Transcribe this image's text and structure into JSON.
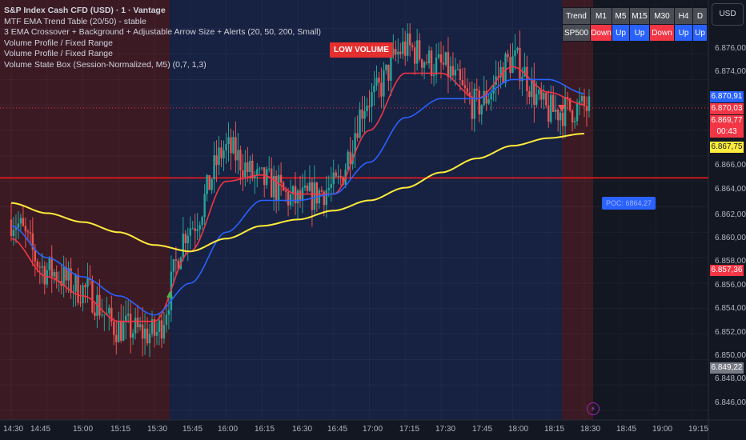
{
  "legend": {
    "title": "S&P Index Cash CFD (USD) · 1 · Vantage",
    "lines": [
      "MTF EMA Trend Table (20/50) - stable",
      "3 EMA Crossover + Background + Adjustable Arrow Size + Alerts (20, 50, 200, Small)",
      "Volume Profile / Fixed Range",
      "Volume Profile / Fixed Range",
      "Volume State Box (Session-Normalized, M5) (0,7, 1,3)"
    ]
  },
  "low_volume_label": "LOW VOLUME",
  "currency_button": "USD",
  "trend_table": {
    "headers": [
      "Trend",
      "M1",
      "M5",
      "M15",
      "M30",
      "H4",
      "D"
    ],
    "row": {
      "symbol": "SP500",
      "values": [
        "Down",
        "Up",
        "Up",
        "Down",
        "Up",
        "Up"
      ]
    }
  },
  "poc_label": "POC: 6864,27",
  "price_axis": {
    "ticks": [
      "6.876,00",
      "6.874,00",
      "6.866,00",
      "6.864,00",
      "6.862,00",
      "6.860,00",
      "6.858,00",
      "6.856,00",
      "6.854,00",
      "6.852,00",
      "6.850,00",
      "6.848,00",
      "6.846,00"
    ],
    "tags": [
      {
        "text": "6.870,91",
        "color": "#2962ff"
      },
      {
        "text": "6.870,03",
        "color": "#f23645"
      },
      {
        "text": "6.869,77",
        "color": "#f23645"
      },
      {
        "text": "00:43",
        "color": "#f23645"
      },
      {
        "text": "6.867,75",
        "color": "#ffeb3b"
      },
      {
        "text": "6.857,36",
        "color": "#f23645"
      },
      {
        "text": "6.849,22",
        "color": "#787b86"
      }
    ]
  },
  "time_axis": [
    "14:30",
    "14:45",
    "15:00",
    "15:15",
    "15:30",
    "15:45",
    "16:00",
    "16:15",
    "16:30",
    "16:45",
    "17:00",
    "17:15",
    "17:30",
    "17:45",
    "18:00",
    "18:15",
    "18:30",
    "18:45",
    "19:00",
    "19:15"
  ],
  "chart_data": {
    "type": "line",
    "x": [
      "14:30",
      "14:45",
      "15:00",
      "15:15",
      "15:30",
      "15:45",
      "16:00",
      "16:15",
      "16:30",
      "16:45",
      "17:00",
      "17:15",
      "17:30",
      "17:45",
      "18:00",
      "18:15",
      "18:30"
    ],
    "ylim": [
      6845.5,
      6878.5
    ],
    "series": [
      {
        "name": "Price",
        "color": "#d1d4dc",
        "values": [
          6861.0,
          6857.0,
          6855.5,
          6852.5,
          6852.0,
          6860.5,
          6866.5,
          6864.0,
          6862.5,
          6863.5,
          6870.5,
          6874.5,
          6873.0,
          6870.0,
          6873.5,
          6869.5,
          6869.77
        ]
      },
      {
        "name": "EMA 20",
        "color": "#f23645",
        "values": [
          6859.5,
          6856.5,
          6855.0,
          6853.0,
          6853.0,
          6858.5,
          6864.0,
          6864.5,
          6863.0,
          6863.0,
          6868.0,
          6872.5,
          6872.5,
          6870.5,
          6873.0,
          6871.0,
          6870.03
        ]
      },
      {
        "name": "EMA 50",
        "color": "#2962ff",
        "values": [
          6860.5,
          6858.0,
          6856.5,
          6855.0,
          6853.5,
          6856.0,
          6860.0,
          6862.5,
          6862.5,
          6863.0,
          6865.5,
          6869.0,
          6870.5,
          6870.5,
          6872.0,
          6872.0,
          6870.91
        ]
      },
      {
        "name": "EMA 200",
        "color": "#ffeb3b",
        "values": [
          6862.3,
          6861.5,
          6860.8,
          6860.0,
          6859.0,
          6858.5,
          6859.5,
          6860.5,
          6861.0,
          6861.7,
          6862.5,
          6863.5,
          6864.7,
          6865.8,
          6866.8,
          6867.4,
          6867.75
        ]
      }
    ]
  }
}
